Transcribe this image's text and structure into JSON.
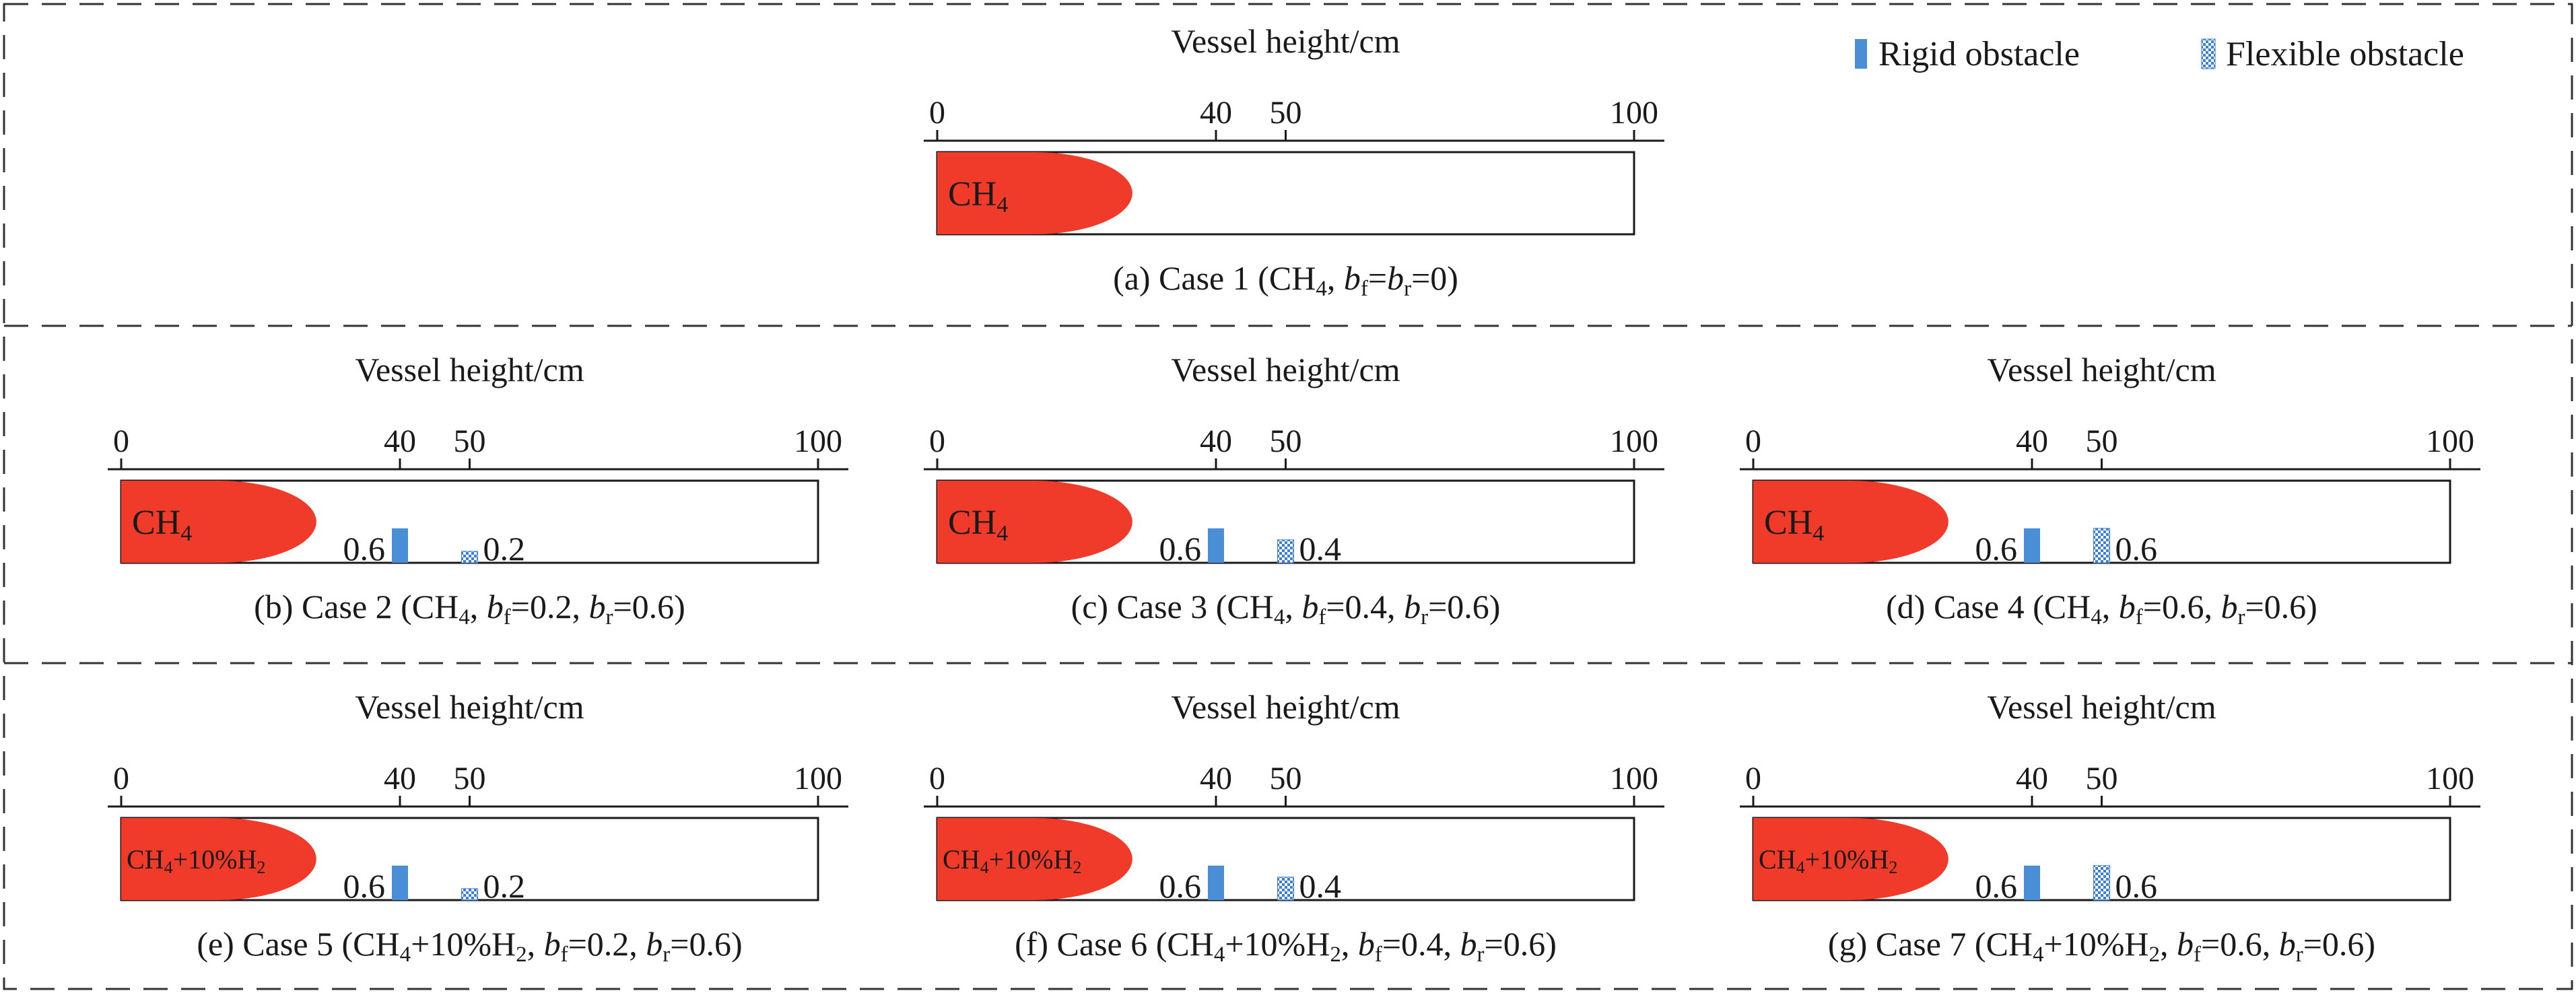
{
  "legend": {
    "rigid": {
      "label": "Rigid obstacle",
      "color": "#4a8fd6"
    },
    "flexible": {
      "label": "Flexible obstacle",
      "color": "#3d7fd0"
    }
  },
  "axis": {
    "title": "Vessel height/cm",
    "ticks": [
      "0",
      "40",
      "50",
      "100"
    ],
    "range": [
      0,
      100
    ]
  },
  "colors": {
    "flame": "#f03a2a",
    "outline": "#1a1a1a",
    "frame_dash": "#333333"
  },
  "cases": [
    {
      "id": "a",
      "flame_text": "CH₄",
      "flame_length_cm": 28,
      "rigid": null,
      "flexible": null,
      "caption": "(a) Case 1 (CH₄, b_f=b_r=0)",
      "caption_parts": {
        "label": "(a) Case 1 (",
        "gas": "CH",
        "gas_sub": "4",
        "gas_rest": "",
        "params": [],
        "tail": "=0)"
      }
    },
    {
      "id": "b",
      "flame_text": "CH₄",
      "flame_length_cm": 28,
      "rigid": {
        "position_cm": 40,
        "blockage": 0.6,
        "label": "0.6"
      },
      "flexible": {
        "position_cm": 50,
        "blockage": 0.2,
        "label": "0.2"
      },
      "caption": "(b) Case 2 (CH₄, b_f=0.2, b_r=0.6)"
    },
    {
      "id": "c",
      "flame_text": "CH₄",
      "flame_length_cm": 28,
      "rigid": {
        "position_cm": 40,
        "blockage": 0.6,
        "label": "0.6"
      },
      "flexible": {
        "position_cm": 50,
        "blockage": 0.4,
        "label": "0.4"
      },
      "caption": "(c) Case 3 (CH₄, b_f=0.4, b_r=0.6)"
    },
    {
      "id": "d",
      "flame_text": "CH₄",
      "flame_length_cm": 28,
      "rigid": {
        "position_cm": 40,
        "blockage": 0.6,
        "label": "0.6"
      },
      "flexible": {
        "position_cm": 50,
        "blockage": 0.6,
        "label": "0.6"
      },
      "caption": "(d) Case 4 (CH₄, b_f=0.6, b_r=0.6)"
    },
    {
      "id": "e",
      "flame_text": "CH₄+10%H₂",
      "flame_length_cm": 28,
      "rigid": {
        "position_cm": 40,
        "blockage": 0.6,
        "label": "0.6"
      },
      "flexible": {
        "position_cm": 50,
        "blockage": 0.2,
        "label": "0.2"
      },
      "caption": "(e) Case 5 (CH₄+10%H₂, b_f=0.2, b_r=0.6)"
    },
    {
      "id": "f",
      "flame_text": "CH₄+10%H₂",
      "flame_length_cm": 28,
      "rigid": {
        "position_cm": 40,
        "blockage": 0.6,
        "label": "0.6"
      },
      "flexible": {
        "position_cm": 50,
        "blockage": 0.4,
        "label": "0.4"
      },
      "caption": "(f) Case 6 (CH₄+10%H₂, b_f=0.4, b_r=0.6)"
    },
    {
      "id": "g",
      "flame_text": "CH₄+10%H₂",
      "flame_length_cm": 28,
      "rigid": {
        "position_cm": 40,
        "blockage": 0.6,
        "label": "0.6"
      },
      "flexible": {
        "position_cm": 50,
        "blockage": 0.6,
        "label": "0.6"
      },
      "caption": "(g) Case 7 (CH₄+10%H₂, b_f=0.6, b_r=0.6)"
    }
  ]
}
